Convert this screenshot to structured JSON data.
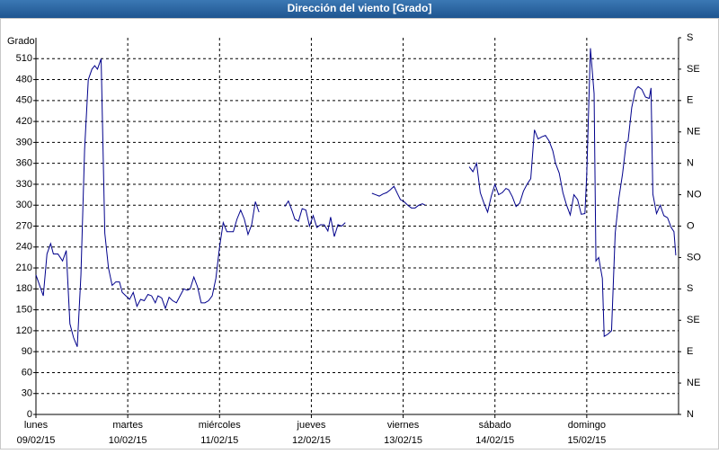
{
  "chart_data": {
    "type": "line",
    "title": "Dirección del viento [Grado]",
    "ylabel": "Grado",
    "xlim": [
      0,
      7
    ],
    "xticks": [
      {
        "value": 0,
        "label": "lunes",
        "date": "09/02/15"
      },
      {
        "value": 1,
        "label": "martes",
        "date": "10/02/15"
      },
      {
        "value": 2,
        "label": "miércoles",
        "date": "11/02/15"
      },
      {
        "value": 3,
        "label": "jueves",
        "date": "12/02/15"
      },
      {
        "value": 4,
        "label": "viernes",
        "date": "13/02/15"
      },
      {
        "value": 5,
        "label": "sábado",
        "date": "14/02/15"
      },
      {
        "value": 6,
        "label": "domingo",
        "date": "15/02/15"
      }
    ],
    "ylim": [
      0,
      540
    ],
    "yticks": [
      0,
      30,
      60,
      90,
      120,
      150,
      180,
      210,
      240,
      270,
      300,
      330,
      360,
      390,
      420,
      450,
      480,
      510
    ],
    "y2lim": [
      0,
      540
    ],
    "y2ticks": [
      {
        "value": 0,
        "label": "N"
      },
      {
        "value": 45,
        "label": "NE"
      },
      {
        "value": 90,
        "label": "E"
      },
      {
        "value": 135,
        "label": "SE"
      },
      {
        "value": 180,
        "label": "S"
      },
      {
        "value": 225,
        "label": "SO"
      },
      {
        "value": 270,
        "label": "O"
      },
      {
        "value": 315,
        "label": "NO"
      },
      {
        "value": 360,
        "label": "N"
      },
      {
        "value": 405,
        "label": "NE"
      },
      {
        "value": 450,
        "label": "E"
      },
      {
        "value": 495,
        "label": "SE"
      },
      {
        "value": 540,
        "label": "S"
      }
    ],
    "grid": true,
    "series": [
      {
        "color": "#00008b",
        "x": [
          0,
          0.04,
          0.08,
          0.12,
          0.16,
          0.19,
          0.24,
          0.29,
          0.33,
          0.37,
          0.41,
          0.45,
          0.49,
          0.53,
          0.57,
          0.61,
          0.64,
          0.67,
          0.71,
          0.75,
          0.79,
          0.83,
          0.87,
          0.91,
          0.94,
          0.98,
          1.02,
          1.06,
          1.1,
          1.14,
          1.18,
          1.22,
          1.26,
          1.3,
          1.33,
          1.37,
          1.41,
          1.45,
          1.49,
          1.53,
          1.57,
          1.61,
          1.65,
          1.68,
          1.72,
          1.76,
          1.8,
          1.84,
          1.88,
          1.92,
          1.96,
          2.0,
          2.04,
          2.08,
          2.11,
          2.15,
          2.19,
          2.23,
          2.27,
          2.31,
          2.35,
          2.39,
          2.43,
          null,
          2.71,
          2.75,
          2.79,
          2.82,
          2.86,
          2.9,
          2.94,
          2.98,
          3.02,
          3.06,
          3.1,
          3.14,
          3.18,
          3.21,
          3.25,
          3.29,
          3.33,
          3.37,
          null,
          3.66,
          3.7,
          3.74,
          3.78,
          3.82,
          3.86,
          3.9,
          3.94,
          3.97,
          4.01,
          4.05,
          4.09,
          4.13,
          4.17,
          4.21,
          4.24,
          null,
          4.72,
          4.76,
          4.8,
          4.84,
          4.88,
          4.92,
          4.96,
          5.0,
          5.04,
          5.08,
          5.12,
          5.15,
          5.19,
          5.23,
          5.27,
          5.31,
          5.35,
          5.39,
          5.43,
          5.47,
          5.51,
          5.55,
          5.59,
          5.63,
          5.66,
          5.7,
          5.74,
          5.78,
          5.82,
          5.86,
          5.9,
          5.94,
          5.98,
          6.0,
          6.04,
          6.08,
          6.1,
          6.13,
          6.17,
          6.19,
          6.23,
          6.27,
          6.31,
          6.35,
          6.39,
          6.43,
          6.45,
          6.49,
          6.53,
          6.56,
          6.6,
          6.64,
          6.68,
          6.7,
          6.72,
          6.76,
          6.8,
          6.84,
          6.88,
          6.92,
          6.95,
          6.97
        ],
        "values": [
          200,
          185,
          170,
          230,
          245,
          230,
          230,
          220,
          235,
          130,
          110,
          97,
          200,
          380,
          480,
          495,
          500,
          495,
          510,
          260,
          210,
          185,
          190,
          190,
          175,
          170,
          165,
          175,
          155,
          165,
          163,
          172,
          170,
          160,
          170,
          167,
          152,
          168,
          163,
          160,
          170,
          180,
          178,
          180,
          197,
          183,
          160,
          160,
          163,
          170,
          195,
          240,
          275,
          262,
          262,
          262,
          280,
          293,
          280,
          258,
          272,
          305,
          290,
          null,
          298,
          306,
          292,
          280,
          277,
          295,
          293,
          270,
          285,
          268,
          272,
          272,
          263,
          283,
          255,
          272,
          270,
          275,
          null,
          317,
          315,
          313,
          316,
          318,
          322,
          327,
          316,
          308,
          305,
          300,
          296,
          296,
          300,
          302,
          300,
          null,
          355,
          348,
          360,
          318,
          303,
          290,
          313,
          330,
          315,
          318,
          324,
          322,
          312,
          298,
          303,
          320,
          330,
          338,
          408,
          395,
          398,
          400,
          392,
          378,
          360,
          346,
          318,
          300,
          286,
          315,
          308,
          287,
          288,
          345,
          525,
          460,
          220,
          225,
          195,
          112,
          115,
          120,
          260,
          310,
          345,
          390,
          392,
          440,
          465,
          470,
          466,
          455,
          453,
          468,
          316,
          288,
          300,
          285,
          282,
          268,
          262,
          228
        ]
      }
    ]
  }
}
